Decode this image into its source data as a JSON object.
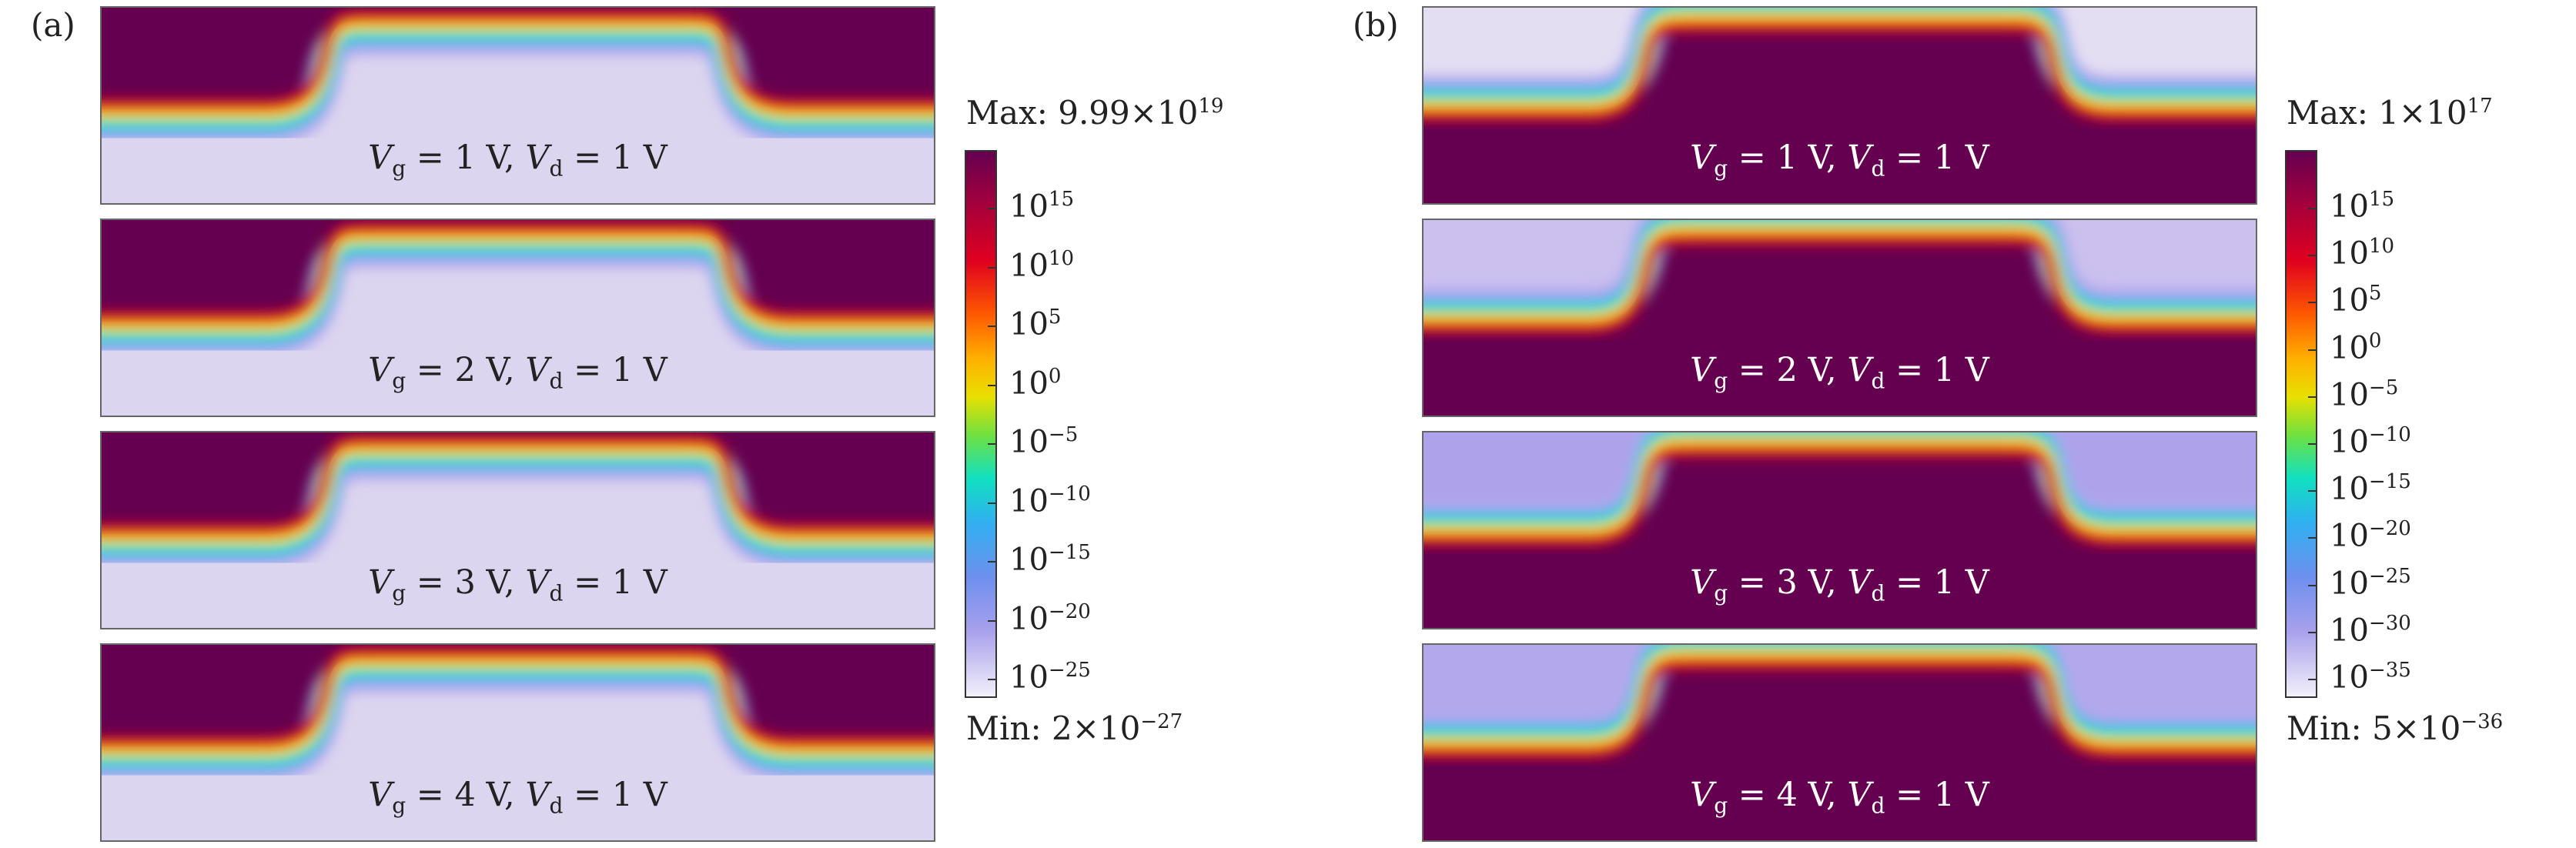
{
  "panels": [
    {
      "label": "(a)",
      "max_text": "Max: 9.99×10",
      "max_exp": "19",
      "min_text": "Min: 2×10",
      "min_exp": "−27",
      "colorbar_ticks": [
        {
          "base": "10",
          "exp": "15"
        },
        {
          "base": "10",
          "exp": "10"
        },
        {
          "base": "10",
          "exp": "5"
        },
        {
          "base": "10",
          "exp": "0"
        },
        {
          "base": "10",
          "exp": "−5"
        },
        {
          "base": "10",
          "exp": "−10"
        },
        {
          "base": "10",
          "exp": "−15"
        },
        {
          "base": "10",
          "exp": "−20"
        },
        {
          "base": "10",
          "exp": "−25"
        }
      ],
      "subplots": [
        {
          "vg_value": "= 1 V,",
          "vd_value": "= 1 V"
        },
        {
          "vg_value": "= 2 V,",
          "vd_value": "= 1 V"
        },
        {
          "vg_value": "= 3 V,",
          "vd_value": "= 1 V"
        },
        {
          "vg_value": "= 4 V,",
          "vd_value": "= 1 V"
        }
      ]
    },
    {
      "label": "(b)",
      "max_text": "Max: 1×10",
      "max_exp": "17",
      "min_text": "Min: 5×10",
      "min_exp": "−36",
      "colorbar_ticks": [
        {
          "base": "10",
          "exp": "15"
        },
        {
          "base": "10",
          "exp": "10"
        },
        {
          "base": "10",
          "exp": "5"
        },
        {
          "base": "10",
          "exp": "0"
        },
        {
          "base": "10",
          "exp": "−5"
        },
        {
          "base": "10",
          "exp": "−10"
        },
        {
          "base": "10",
          "exp": "−15"
        },
        {
          "base": "10",
          "exp": "−20"
        },
        {
          "base": "10",
          "exp": "−25"
        },
        {
          "base": "10",
          "exp": "−30"
        },
        {
          "base": "10",
          "exp": "−35"
        }
      ],
      "subplots": [
        {
          "vg_value": "= 1 V,",
          "vd_value": "= 1 V"
        },
        {
          "vg_value": "= 2 V,",
          "vd_value": "= 1 V"
        },
        {
          "vg_value": "= 3 V,",
          "vd_value": "= 1 V"
        },
        {
          "vg_value": "= 4 V,",
          "vd_value": "= 1 V"
        }
      ]
    }
  ],
  "symbols": {
    "vg_sub": "g",
    "vd_sub": "d",
    "v": "V"
  },
  "colors": {
    "dark_purple": "#650050",
    "light_lavender": "#dcd5ef",
    "lavender_b1": "#e4def2",
    "lavender_b2": "#cbc0ee",
    "lavender_b3": "#aea2ea",
    "lavender_b4": "#b4a8ec",
    "white_text": "#ffffff",
    "dark_text": "#222222"
  }
}
